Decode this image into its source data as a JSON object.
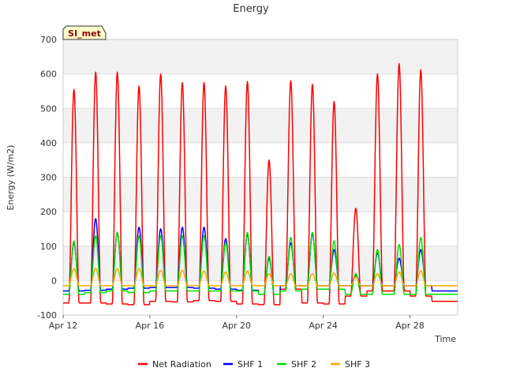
{
  "chart_data": {
    "type": "line",
    "title": "Energy",
    "xlabel": "Time",
    "ylabel": "Energy (W/m2)",
    "badge": "SI_met",
    "ylim": [
      -100,
      700
    ],
    "yticks": [
      -100,
      0,
      100,
      200,
      300,
      400,
      500,
      600,
      700
    ],
    "xlim": [
      0,
      18.2
    ],
    "xticks": [
      {
        "x": 0,
        "label": "Apr 12"
      },
      {
        "x": 4,
        "label": "Apr 16"
      },
      {
        "x": 8,
        "label": "Apr 20"
      },
      {
        "x": 12,
        "label": "Apr 24"
      },
      {
        "x": 16,
        "label": "Apr 28"
      }
    ],
    "grid": true,
    "legend_position": "bottom-center",
    "colors": {
      "net": "#ff0000",
      "shf1": "#0000ff",
      "shf2": "#00dd00",
      "shf3": "#ffa500"
    },
    "series": [
      {
        "name": "Net Radiation",
        "color": "#ff0000",
        "night": [
          -65,
          -65,
          -68,
          -70,
          -60,
          -62,
          -58,
          -60,
          -68,
          -70,
          -25,
          -65,
          -68,
          -45,
          -30,
          -30,
          -45,
          -60
        ],
        "peaks": [
          555,
          605,
          605,
          565,
          600,
          575,
          575,
          565,
          578,
          350,
          580,
          570,
          520,
          210,
          600,
          630,
          612
        ]
      },
      {
        "name": "SHF 1",
        "color": "#0000ff",
        "night": [
          -30,
          -28,
          -25,
          -22,
          -20,
          -20,
          -22,
          -25,
          -28,
          -40,
          -15,
          -15,
          -15,
          -15,
          -15,
          -15,
          -15,
          -30
        ],
        "peaks": [
          110,
          180,
          140,
          155,
          150,
          155,
          155,
          122,
          135,
          65,
          110,
          135,
          90,
          15,
          80,
          65,
          90
        ]
      },
      {
        "name": "SHF 2",
        "color": "#00dd00",
        "night": [
          -40,
          -35,
          -30,
          -35,
          -30,
          -30,
          -30,
          -30,
          -30,
          -40,
          -30,
          -25,
          -25,
          -40,
          -40,
          -40,
          -40,
          -40
        ],
        "peaks": [
          115,
          130,
          140,
          130,
          130,
          130,
          130,
          110,
          140,
          70,
          125,
          140,
          115,
          20,
          90,
          105,
          125
        ]
      },
      {
        "name": "SHF 3",
        "color": "#ffa500",
        "night": [
          -15,
          -15,
          -15,
          -15,
          -15,
          -15,
          -15,
          -15,
          -15,
          -15,
          -15,
          -15,
          -15,
          -15,
          -15,
          -15,
          -15,
          -15
        ],
        "peaks": [
          35,
          35,
          35,
          35,
          30,
          30,
          28,
          25,
          28,
          20,
          20,
          20,
          22,
          10,
          20,
          25,
          28
        ]
      }
    ]
  }
}
